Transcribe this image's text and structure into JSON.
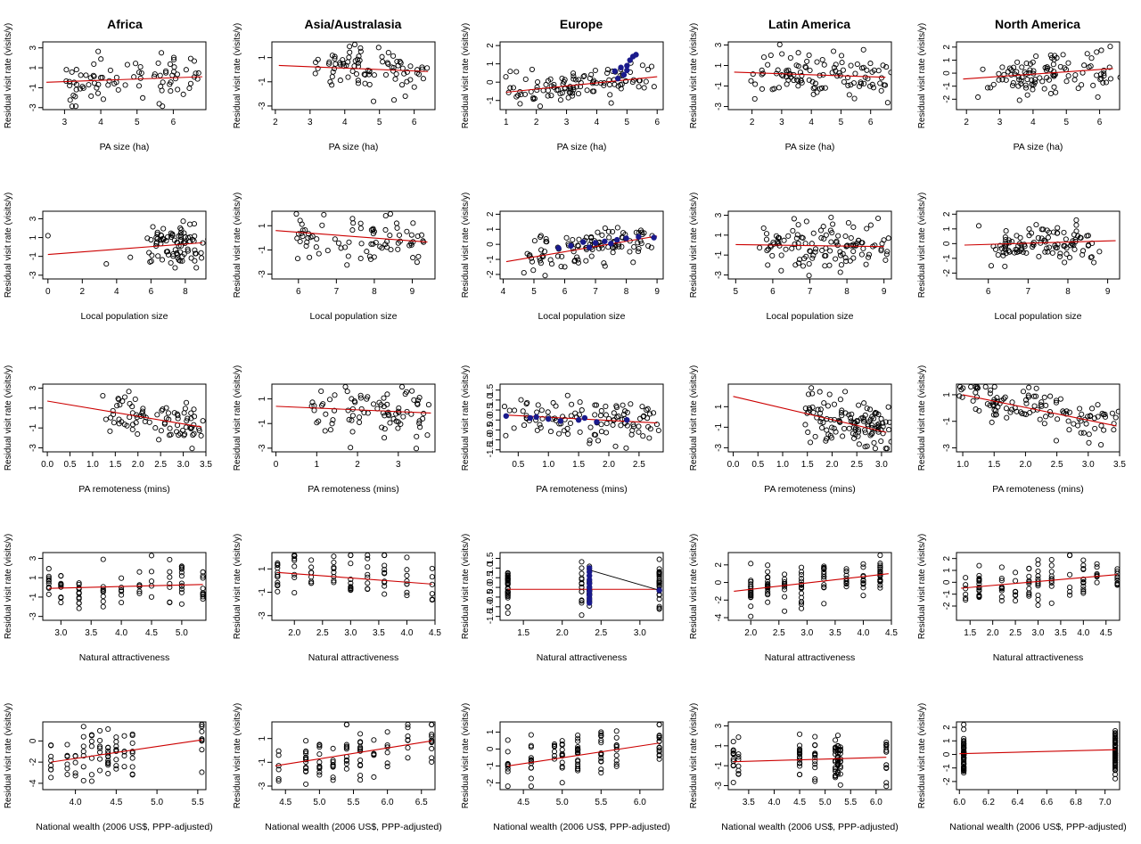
{
  "figure": {
    "region_titles": [
      "Africa",
      "Asia/Australasia",
      "Europe",
      "Latin America",
      "North America"
    ],
    "ylabel": "Residual visit rate (visits/y)",
    "row_xlabels": [
      "PA size (ha)",
      "Local population size",
      "PA remoteness (mins)",
      "Natural attractiveness",
      "National wealth (2006 US$, PPP-adjusted)"
    ]
  },
  "colors": {
    "points": "#000000",
    "highlight": "#1a1a8c",
    "trend": "#cc0000",
    "frame": "#000000"
  },
  "chart_data": [
    {
      "type": "scatter",
      "region": "Africa",
      "xlabel": "PA size (ha)",
      "xlim": [
        2.4,
        6.9
      ],
      "ylim": [
        -3.2,
        3.6
      ],
      "xticks": [
        3,
        4,
        5,
        6
      ],
      "yticks": [
        -3,
        -1,
        1,
        3
      ],
      "trend": [
        [
          2.5,
          -0.45
        ],
        [
          6.8,
          0.1
        ]
      ],
      "n": 85,
      "seed": 11,
      "x_range": [
        3.0,
        6.6
      ],
      "y_sd": 1.2
    },
    {
      "type": "scatter",
      "region": "Asia/Australasia",
      "xlabel": "PA size (ha)",
      "xlim": [
        1.9,
        6.6
      ],
      "ylim": [
        -3.3,
        2.3
      ],
      "xticks": [
        2,
        3,
        4,
        5,
        6
      ],
      "yticks": [
        -3,
        -1,
        1
      ],
      "trend": [
        [
          2.1,
          0.35
        ],
        [
          6.4,
          -0.15
        ]
      ],
      "n": 85,
      "seed": 12,
      "x_range": [
        3.2,
        6.3
      ],
      "y_sd": 1.0
    },
    {
      "type": "scatter",
      "region": "Europe",
      "xlabel": "PA size (ha)",
      "xlim": [
        0.8,
        6.2
      ],
      "ylim": [
        -1.5,
        2.2
      ],
      "xticks": [
        1,
        2,
        3,
        4,
        5,
        6
      ],
      "yticks": [
        -1,
        0,
        1,
        2
      ],
      "trend": [
        [
          1.0,
          -0.55
        ],
        [
          6.0,
          0.3
        ]
      ],
      "n": 110,
      "seed": 13,
      "x_range": [
        1.2,
        5.8
      ],
      "y_sd": 0.5,
      "highlight": [
        [
          4.6,
          0.6
        ],
        [
          4.8,
          0.8
        ],
        [
          5.0,
          0.9
        ],
        [
          5.1,
          1.2
        ],
        [
          5.2,
          1.4
        ],
        [
          5.3,
          1.5
        ],
        [
          4.9,
          0.4
        ],
        [
          5.0,
          0.65
        ],
        [
          4.7,
          0.2
        ]
      ]
    },
    {
      "type": "scatter",
      "region": "Latin America",
      "xlabel": "PA size (ha)",
      "xlim": [
        1.2,
        6.7
      ],
      "ylim": [
        -3.3,
        3.3
      ],
      "xticks": [
        2,
        3,
        4,
        5,
        6
      ],
      "yticks": [
        -3,
        -1,
        1,
        3
      ],
      "trend": [
        [
          1.4,
          0.35
        ],
        [
          6.5,
          -0.15
        ]
      ],
      "n": 110,
      "seed": 14,
      "x_range": [
        2.2,
        6.5
      ],
      "y_sd": 1.2
    },
    {
      "type": "scatter",
      "region": "North America",
      "xlabel": "PA size (ha)",
      "xlim": [
        1.7,
        6.6
      ],
      "ylim": [
        -2.8,
        2.4
      ],
      "xticks": [
        2,
        3,
        4,
        5,
        6
      ],
      "yticks": [
        -2,
        -1,
        0,
        1,
        2
      ],
      "trend": [
        [
          1.9,
          -0.45
        ],
        [
          6.4,
          0.35
        ]
      ],
      "n": 110,
      "seed": 15,
      "x_range": [
        2.6,
        6.4
      ],
      "y_sd": 0.8
    },
    {
      "type": "scatter",
      "region": "Africa",
      "xlabel": "Local population size",
      "xlim": [
        -0.3,
        9.2
      ],
      "ylim": [
        -3.4,
        3.8
      ],
      "xticks": [
        0,
        2,
        4,
        6,
        8
      ],
      "yticks": [
        -3,
        -1,
        1,
        3
      ],
      "trend": [
        [
          0,
          -0.8
        ],
        [
          9,
          0.45
        ]
      ],
      "n": 85,
      "seed": 21,
      "x_range": [
        5.9,
        9.0
      ],
      "y_sd": 1.2,
      "extra": [
        [
          0,
          1.2
        ],
        [
          3.4,
          -1.8
        ],
        [
          4.8,
          -1.1
        ]
      ]
    },
    {
      "type": "scatter",
      "region": "Asia/Australasia",
      "xlabel": "Local population size",
      "xlim": [
        5.3,
        9.6
      ],
      "ylim": [
        -3.4,
        2.2
      ],
      "xticks": [
        6,
        7,
        8,
        9
      ],
      "yticks": [
        -3,
        -1,
        1
      ],
      "trend": [
        [
          5.4,
          0.6
        ],
        [
          9.4,
          -0.35
        ]
      ],
      "n": 80,
      "seed": 22,
      "x_range": [
        5.9,
        9.4
      ],
      "y_sd": 1.1
    },
    {
      "type": "scatter",
      "region": "Europe",
      "xlabel": "Local population size",
      "xlim": [
        3.9,
        9.2
      ],
      "ylim": [
        -2.3,
        2.2
      ],
      "xticks": [
        4,
        5,
        6,
        7,
        8,
        9
      ],
      "yticks": [
        -2,
        -1,
        0,
        1,
        2
      ],
      "trend": [
        [
          4.1,
          -1.15
        ],
        [
          9.0,
          0.55
        ]
      ],
      "n": 110,
      "seed": 23,
      "x_range": [
        4.8,
        8.9
      ],
      "y_sd": 0.6,
      "highlight": [
        [
          5.8,
          -0.25
        ],
        [
          6.2,
          -0.1
        ],
        [
          6.6,
          0.15
        ],
        [
          7.0,
          0.1
        ],
        [
          7.3,
          0.2
        ],
        [
          7.7,
          0.3
        ],
        [
          8.0,
          0.4
        ],
        [
          8.4,
          0.5
        ],
        [
          8.9,
          0.45
        ],
        [
          6.8,
          -0.2
        ],
        [
          7.5,
          0.05
        ]
      ]
    },
    {
      "type": "scatter",
      "region": "Latin America",
      "xlabel": "Local population size",
      "xlim": [
        4.8,
        9.2
      ],
      "ylim": [
        -3.4,
        3.4
      ],
      "xticks": [
        5,
        6,
        7,
        8,
        9
      ],
      "yticks": [
        -3,
        -1,
        1,
        3
      ],
      "trend": [
        [
          5.0,
          0.05
        ],
        [
          9.0,
          -0.15
        ]
      ],
      "n": 120,
      "seed": 24,
      "x_range": [
        5.8,
        9.0
      ],
      "y_sd": 1.3
    },
    {
      "type": "scatter",
      "region": "North America",
      "xlabel": "Local population size",
      "xlim": [
        5.2,
        9.3
      ],
      "ylim": [
        -2.4,
        2.2
      ],
      "xticks": [
        6,
        7,
        8,
        9
      ],
      "yticks": [
        -2,
        -1,
        0,
        1,
        2
      ],
      "trend": [
        [
          5.4,
          -0.1
        ],
        [
          9.2,
          0.2
        ]
      ],
      "n": 110,
      "seed": 25,
      "x_range": [
        6.1,
        8.8
      ],
      "y_sd": 0.7
    },
    {
      "type": "scatter",
      "region": "Africa",
      "xlabel": "PA remoteness (mins)",
      "xlim": [
        -0.1,
        3.5
      ],
      "ylim": [
        -3.4,
        3.4
      ],
      "xticks": [
        0.0,
        0.5,
        1.0,
        1.5,
        2.0,
        2.5,
        3.0,
        3.5
      ],
      "yticks": [
        -3,
        -1,
        1,
        3
      ],
      "trend": [
        [
          0,
          1.7
        ],
        [
          3.4,
          -0.9
        ]
      ],
      "n": 85,
      "seed": 31,
      "x_range": [
        1.4,
        3.4
      ],
      "y_sd": 1.0
    },
    {
      "type": "scatter",
      "region": "Asia/Australasia",
      "xlabel": "PA remoteness (mins)",
      "xlim": [
        -0.1,
        3.9
      ],
      "ylim": [
        -3.3,
        2.2
      ],
      "xticks": [
        0,
        1,
        2,
        3
      ],
      "yticks": [
        -3,
        -1,
        1
      ],
      "trend": [
        [
          0,
          0.4
        ],
        [
          3.8,
          -0.15
        ]
      ],
      "n": 85,
      "seed": 32,
      "x_range": [
        0.9,
        3.6
      ],
      "y_sd": 1.0
    },
    {
      "type": "scatter",
      "region": "Europe",
      "xlabel": "PA remoteness (mins)",
      "xlim": [
        0.2,
        2.9
      ],
      "ylim": [
        -1.6,
        1.8
      ],
      "xticks": [
        0.5,
        1.0,
        1.5,
        2.0,
        2.5
      ],
      "yticks": [
        -1.5,
        -1.0,
        -0.5,
        0.0,
        0.5,
        1.0,
        1.5
      ],
      "trend": [
        [
          0.3,
          0.25
        ],
        [
          2.8,
          -0.15
        ]
      ],
      "n": 110,
      "seed": 33,
      "x_range": [
        0.4,
        2.8
      ],
      "y_sd": 0.5,
      "highlight": [
        [
          0.3,
          0.2
        ],
        [
          0.8,
          0.15
        ],
        [
          1.0,
          0.05
        ],
        [
          1.2,
          -0.05
        ],
        [
          1.5,
          0.0
        ],
        [
          1.8,
          -0.1
        ],
        [
          2.3,
          0.0
        ],
        [
          0.7,
          0.1
        ],
        [
          1.6,
          0.1
        ]
      ]
    },
    {
      "type": "scatter",
      "region": "Latin America",
      "xlabel": "PA remoteness (mins)",
      "xlim": [
        -0.1,
        3.2
      ],
      "ylim": [
        -3.4,
        3.2
      ],
      "xticks": [
        0.0,
        0.5,
        1.0,
        1.5,
        2.0,
        2.5,
        3.0
      ],
      "yticks": [
        -3,
        -1,
        1
      ],
      "trend": [
        [
          0,
          2.0
        ],
        [
          3.1,
          -1.5
        ]
      ],
      "n": 120,
      "seed": 34,
      "x_range": [
        1.4,
        3.1
      ],
      "y_sd": 1.2
    },
    {
      "type": "scatter",
      "region": "North America",
      "xlabel": "PA remoteness (mins)",
      "xlim": [
        0.9,
        3.5
      ],
      "ylim": [
        -3.3,
        1.8
      ],
      "xticks": [
        1.0,
        1.5,
        2.0,
        2.5,
        3.0,
        3.5
      ],
      "yticks": [
        -3,
        -1,
        1
      ],
      "trend": [
        [
          1.0,
          1.0
        ],
        [
          3.45,
          -1.35
        ]
      ],
      "n": 120,
      "seed": 35,
      "x_range": [
        1.0,
        3.45
      ],
      "y_sd": 0.7
    },
    {
      "type": "scatter",
      "region": "Africa",
      "xlabel": "Natural attractiveness",
      "xlim": [
        2.7,
        5.4
      ],
      "ylim": [
        -3.4,
        3.6
      ],
      "xticks": [
        3.0,
        3.5,
        4.0,
        4.5,
        5.0
      ],
      "yticks": [
        -3,
        -1,
        1,
        3
      ],
      "trend": [
        [
          2.8,
          -0.1
        ],
        [
          5.35,
          0.3
        ]
      ],
      "n": 85,
      "seed": 41,
      "cols": [
        2.8,
        3.0,
        3.3,
        3.7,
        4.0,
        4.3,
        4.5,
        4.8,
        5.0,
        5.35
      ],
      "y_sd": 1.2
    },
    {
      "type": "scatter",
      "region": "Asia/Australasia",
      "xlabel": "Natural attractiveness",
      "xlim": [
        1.6,
        4.5
      ],
      "ylim": [
        -3.4,
        2.4
      ],
      "xticks": [
        2.0,
        2.5,
        3.0,
        3.5,
        4.0,
        4.5
      ],
      "yticks": [
        -3,
        -1,
        1
      ],
      "trend": [
        [
          1.7,
          0.7
        ],
        [
          4.45,
          -0.3
        ]
      ],
      "n": 80,
      "seed": 42,
      "cols": [
        1.7,
        2.0,
        2.3,
        2.7,
        3.0,
        3.3,
        3.6,
        4.0,
        4.45
      ],
      "y_sd": 1.0
    },
    {
      "type": "scatter",
      "region": "Europe",
      "xlabel": "Natural attractiveness",
      "xlim": [
        1.2,
        3.3
      ],
      "ylim": [
        -1.7,
        1.8
      ],
      "xticks": [
        1.5,
        2.0,
        2.5,
        3.0
      ],
      "yticks": [
        -1.5,
        -1.0,
        -0.5,
        0.0,
        0.5,
        1.0,
        1.5
      ],
      "trend": [
        [
          1.3,
          -0.1
        ],
        [
          3.25,
          -0.1
        ]
      ],
      "n": 100,
      "seed": 43,
      "cols": [
        1.3,
        2.25,
        2.35,
        3.25
      ],
      "y_sd": 0.6,
      "highlight": [
        [
          2.35,
          1.0
        ],
        [
          2.35,
          0.8
        ],
        [
          2.35,
          0.6
        ],
        [
          2.35,
          0.4
        ],
        [
          2.35,
          0.2
        ],
        [
          2.35,
          0.0
        ],
        [
          2.35,
          -0.2
        ],
        [
          2.35,
          -0.4
        ],
        [
          2.35,
          -0.6
        ],
        [
          2.35,
          -0.8
        ],
        [
          3.25,
          -0.15
        ]
      ],
      "connector": [
        [
          2.35,
          0.9
        ],
        [
          3.25,
          -0.15
        ]
      ]
    },
    {
      "type": "scatter",
      "region": "Latin America",
      "xlabel": "Natural attractiveness",
      "xlim": [
        1.6,
        4.5
      ],
      "ylim": [
        -4.3,
        3.4
      ],
      "xticks": [
        2.0,
        2.5,
        3.0,
        3.5,
        4.0,
        4.5
      ],
      "yticks": [
        -4,
        -2,
        0,
        2
      ],
      "trend": [
        [
          1.7,
          -1.0
        ],
        [
          4.45,
          1.0
        ]
      ],
      "n": 120,
      "seed": 44,
      "cols": [
        2.0,
        2.3,
        2.6,
        2.9,
        3.3,
        3.7,
        4.0,
        4.3
      ],
      "y_sd": 1.2
    },
    {
      "type": "scatter",
      "region": "North America",
      "xlabel": "Natural attractiveness",
      "xlim": [
        1.2,
        4.8
      ],
      "ylim": [
        -3.2,
        2.5
      ],
      "xticks": [
        1.5,
        2.0,
        2.5,
        3.0,
        3.5,
        4.0,
        4.5
      ],
      "yticks": [
        -2,
        -1,
        0,
        1,
        2
      ],
      "trend": [
        [
          1.3,
          -0.5
        ],
        [
          4.75,
          0.65
        ]
      ],
      "n": 110,
      "seed": 45,
      "cols": [
        1.4,
        1.7,
        2.2,
        2.5,
        2.8,
        3.0,
        3.3,
        3.7,
        4.0,
        4.3,
        4.75
      ],
      "y_sd": 0.9
    },
    {
      "type": "scatter",
      "region": "Africa",
      "xlabel": "National wealth (2006 US$, PPP-adjusted)",
      "xlim": [
        3.6,
        5.6
      ],
      "ylim": [
        -4.6,
        1.8
      ],
      "xticks": [
        4.0,
        4.5,
        5.0,
        5.5
      ],
      "yticks": [
        -4,
        -2,
        0
      ],
      "trend": [
        [
          3.7,
          -2.0
        ],
        [
          5.55,
          0.1
        ]
      ],
      "n": 85,
      "seed": 51,
      "cols": [
        3.7,
        3.9,
        4.0,
        4.1,
        4.2,
        4.3,
        4.4,
        4.5,
        4.6,
        4.7,
        5.55
      ],
      "y_sd": 1.2
    },
    {
      "type": "scatter",
      "region": "Asia/Australasia",
      "xlabel": "National wealth (2006 US$, PPP-adjusted)",
      "xlim": [
        4.3,
        6.7
      ],
      "ylim": [
        -3.3,
        2.4
      ],
      "xticks": [
        4.5,
        5.0,
        5.5,
        6.0,
        6.5
      ],
      "yticks": [
        -3,
        -1,
        1
      ],
      "trend": [
        [
          4.35,
          -1.3
        ],
        [
          6.65,
          0.8
        ]
      ],
      "n": 90,
      "seed": 52,
      "cols": [
        4.4,
        4.8,
        5.0,
        5.2,
        5.4,
        5.6,
        5.8,
        6.0,
        6.3,
        6.65
      ],
      "y_sd": 1.0
    },
    {
      "type": "scatter",
      "region": "Europe",
      "xlabel": "National wealth (2006 US$, PPP-adjusted)",
      "xlim": [
        4.2,
        6.3
      ],
      "ylim": [
        -2.4,
        1.6
      ],
      "xticks": [
        4.5,
        5.0,
        5.5,
        6.0
      ],
      "yticks": [
        -2,
        -1,
        0,
        1
      ],
      "trend": [
        [
          4.3,
          -1.0
        ],
        [
          6.25,
          0.35
        ]
      ],
      "n": 100,
      "seed": 53,
      "cols": [
        4.3,
        4.6,
        4.9,
        5.0,
        5.2,
        5.5,
        5.7,
        6.25
      ],
      "y_sd": 0.7
    },
    {
      "type": "scatter",
      "region": "Latin America",
      "xlabel": "National wealth (2006 US$, PPP-adjusted)",
      "xlim": [
        3.1,
        6.3
      ],
      "ylim": [
        -3.4,
        3.4
      ],
      "xticks": [
        3.5,
        4.0,
        4.5,
        5.0,
        5.5,
        6.0
      ],
      "yticks": [
        -3,
        -1,
        1,
        3
      ],
      "trend": [
        [
          3.2,
          -0.6
        ],
        [
          6.2,
          -0.15
        ]
      ],
      "n": 110,
      "seed": 54,
      "cols": [
        3.2,
        3.3,
        4.5,
        4.8,
        5.2,
        5.25,
        5.3,
        6.2
      ],
      "y_sd": 1.2
    },
    {
      "type": "scatter",
      "region": "North America",
      "xlabel": "National wealth (2006 US$, PPP-adjusted)",
      "xlim": [
        5.98,
        7.1
      ],
      "ylim": [
        -2.6,
        2.4
      ],
      "xticks": [
        6.0,
        6.2,
        6.4,
        6.6,
        6.8,
        7.0
      ],
      "yticks": [
        -2,
        -1,
        0,
        1,
        2
      ],
      "trend": [
        [
          6.0,
          0.05
        ],
        [
          7.07,
          0.35
        ]
      ],
      "n": 110,
      "seed": 55,
      "cols": [
        6.03,
        7.07
      ],
      "y_sd": 0.9
    }
  ]
}
